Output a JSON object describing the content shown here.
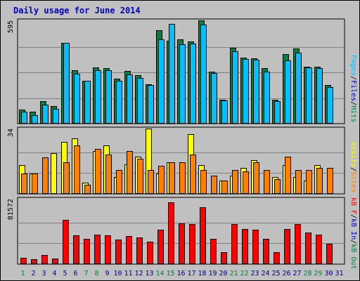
{
  "chart_data": {
    "type": "bar",
    "title": "Daily usage for June 2014",
    "days": [
      "1",
      "2",
      "3",
      "4",
      "5",
      "6",
      "7",
      "8",
      "9",
      "10",
      "11",
      "12",
      "13",
      "14",
      "15",
      "16",
      "17",
      "18",
      "19",
      "20",
      "21",
      "22",
      "23",
      "24",
      "25",
      "26",
      "27",
      "28",
      "29",
      "30",
      "31"
    ],
    "weekend_days": [
      "1",
      "7",
      "8",
      "14",
      "15",
      "21",
      "22",
      "28",
      "29"
    ],
    "panels": {
      "top": {
        "max_label": "595",
        "max": 595,
        "right_label": {
          "parts": [
            "Pages",
            "/",
            "Files",
            "/",
            "Hits"
          ],
          "colors": [
            "#00c0ff",
            "#000000",
            "#0000c0",
            "#000000",
            "#008040"
          ]
        },
        "series": [
          {
            "key": "hits",
            "color": "#008040",
            "values": [
              80,
              70,
              130,
              100,
              470,
              310,
              250,
              325,
              320,
              260,
              305,
              280,
              230,
              540,
              480,
              490,
              475,
              600,
              300,
              140,
              440,
              385,
              380,
              320,
              140,
              405,
              435,
              330,
              330,
              225,
              0
            ]
          },
          {
            "key": "files",
            "color": "#0000c0",
            "values": [
              0,
              0,
              0,
              0,
              0,
              0,
              0,
              0,
              0,
              0,
              0,
              0,
              0,
              0,
              0,
              0,
              0,
              0,
              0,
              0,
              0,
              0,
              0,
              0,
              0,
              0,
              0,
              0,
              0,
              0,
              0
            ]
          },
          {
            "key": "pages",
            "color": "#00c0ff",
            "values": [
              70,
              50,
              110,
              85,
              470,
              290,
              250,
              310,
              310,
              250,
              285,
              265,
              225,
              490,
              580,
              460,
              465,
              575,
              295,
              135,
              420,
              375,
              370,
              300,
              130,
              365,
              410,
              325,
              320,
              210,
              0
            ]
          }
        ]
      },
      "middle": {
        "max_label": "34",
        "max": 34,
        "right_label": {
          "parts": [
            "Visits",
            "/",
            "Sites"
          ],
          "colors": [
            "#ffff00",
            "#000000",
            "#ff8000"
          ]
        },
        "series": [
          {
            "key": "visits",
            "color": "#ffff00",
            "values": [
              15.5,
              11,
              0,
              22,
              28,
              30,
              6,
              23,
              26,
              9,
              16,
              20,
              35,
              11,
              17,
              0,
              32,
              15.5,
              0,
              7,
              10,
              14,
              18,
              0,
              9,
              15.5,
              9,
              7,
              15.5,
              0,
              0
            ]
          },
          {
            "key": "sites",
            "color": "#ff8000",
            "values": [
              11,
              11,
              19.5,
              0,
              17,
              26,
              5,
              24,
              21,
              13,
              23,
              19,
              13,
              15,
              17,
              17,
              21,
              13,
              10,
              7,
              13,
              12,
              17,
              13,
              8,
              20,
              13,
              13,
              14,
              14,
              0
            ]
          }
        ]
      },
      "bottom": {
        "max_label": "81572",
        "max": 81572,
        "right_label": {
          "parts": [
            "kB F",
            "/",
            "kB In",
            "/",
            "kB Out"
          ],
          "colors": [
            "#ff0000",
            "#000000",
            "#0000c0",
            "#000000",
            "#008040"
          ]
        },
        "series": [
          {
            "key": "kb_out",
            "color": "#008040",
            "values": [
              0,
              0,
              0,
              0,
              0,
              0,
              0,
              0,
              0,
              0,
              0,
              0,
              0,
              0,
              0,
              0,
              0,
              0,
              0,
              0,
              0,
              0,
              0,
              0,
              0,
              0,
              0,
              0,
              0,
              0,
              0
            ]
          },
          {
            "key": "kb_in",
            "color": "#0000c0",
            "values": [
              0,
              0,
              0,
              0,
              0,
              0,
              0,
              0,
              0,
              0,
              0,
              0,
              0,
              0,
              0,
              0,
              0,
              0,
              0,
              0,
              0,
              0,
              0,
              0,
              0,
              0,
              0,
              0,
              0,
              0,
              0
            ]
          },
          {
            "key": "kb_f",
            "color": "#ff0000",
            "values": [
              8500,
              6000,
              12000,
              7500,
              57500,
              37000,
              33000,
              38000,
              37000,
              32000,
              36000,
              34000,
              29000,
              44500,
              80000,
              53000,
              52000,
              73000,
              33000,
              15500,
              52000,
              45000,
              44000,
              33000,
              15500,
              45000,
              52000,
              41000,
              38000,
              26000,
              0
            ]
          }
        ]
      }
    }
  }
}
